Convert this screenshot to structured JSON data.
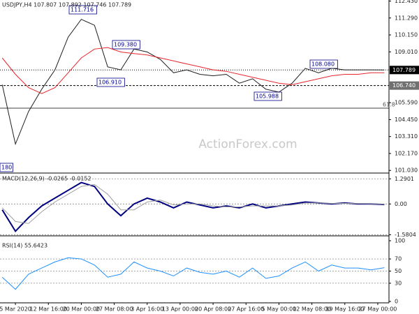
{
  "chart_data": [
    {
      "type": "line",
      "title": "USDJPY,H4 107.807 107.892 107.746 107.789",
      "x": [
        -4,
        0,
        4,
        8,
        12,
        16,
        20,
        24,
        28,
        32,
        36,
        40,
        44,
        48,
        52,
        56,
        60,
        64,
        68,
        72,
        76,
        80,
        84,
        88,
        92,
        96,
        100,
        104,
        108,
        112
      ],
      "series": [
        {
          "color": "#1e1e1e",
          "values": [
            106.8,
            102.8,
            105.0,
            106.5,
            107.8,
            110.0,
            111.2,
            110.8,
            108.0,
            107.8,
            109.2,
            109.0,
            108.5,
            107.6,
            107.8,
            107.5,
            107.4,
            107.5,
            106.9,
            107.2,
            106.5,
            106.3,
            106.9,
            107.9,
            107.6,
            107.9,
            107.8,
            107.8,
            107.8,
            107.789
          ]
        },
        {
          "color": "#e8262c",
          "values": [
            108.6,
            107.5,
            106.6,
            106.2,
            106.6,
            107.6,
            108.6,
            109.2,
            109.3,
            109.0,
            108.9,
            108.8,
            108.6,
            108.4,
            108.2,
            108.0,
            107.8,
            107.7,
            107.5,
            107.3,
            107.1,
            106.9,
            106.8,
            107.0,
            107.2,
            107.4,
            107.5,
            107.5,
            107.6,
            107.6
          ]
        }
      ],
      "xlim": [
        -4.68,
        113.4
      ],
      "ylim": [
        100.9,
        112.5
      ],
      "yticks": [
        {
          "value": 101.03,
          "label": "101.030"
        },
        {
          "value": 102.17,
          "label": "102.170"
        },
        {
          "value": 103.31,
          "label": "103.310"
        },
        {
          "value": 104.45,
          "label": "104.450"
        },
        {
          "value": 105.59,
          "label": "105.590"
        },
        {
          "value": 109.01,
          "label": "109.010"
        },
        {
          "value": 110.15,
          "label": "110.150"
        },
        {
          "value": 111.29,
          "label": "111.290"
        },
        {
          "value": 112.43,
          "label": "112.430"
        }
      ],
      "levels": [
        {
          "value": 107.789,
          "label": "107.789",
          "color": "#000000"
        },
        {
          "value": 106.74,
          "label": "106.740",
          "color": "#707070"
        }
      ],
      "annotations": [
        "111.716",
        "109.380",
        "106.910",
        "105.988",
        "108.080",
        "180",
        "61.8"
      ],
      "watermark": "ActionForex.com"
    },
    {
      "type": "line",
      "title": "MACD(12,26,9) -0.0265 -0.0152",
      "x": [
        -4,
        0,
        4,
        8,
        12,
        16,
        20,
        24,
        28,
        32,
        36,
        40,
        44,
        48,
        52,
        56,
        60,
        64,
        68,
        72,
        76,
        80,
        84,
        88,
        92,
        96,
        100,
        104,
        108,
        112
      ],
      "series": [
        {
          "color": "#000080",
          "width": 2,
          "values": [
            -0.3,
            -1.4,
            -0.7,
            -0.1,
            0.3,
            0.7,
            1.1,
            0.9,
            0.0,
            -0.6,
            0.0,
            0.3,
            0.1,
            -0.2,
            0.1,
            -0.05,
            -0.2,
            -0.1,
            -0.2,
            0.0,
            -0.2,
            -0.1,
            0.0,
            0.1,
            0.05,
            0.0,
            0.05,
            0.0,
            0.0,
            -0.03
          ]
        },
        {
          "color": "#a0a0a0",
          "width": 1,
          "values": [
            -0.2,
            -0.9,
            -1.0,
            -0.4,
            0.1,
            0.5,
            0.9,
            1.0,
            0.5,
            -0.3,
            -0.3,
            0.1,
            0.2,
            -0.05,
            0.0,
            0.0,
            -0.1,
            -0.15,
            -0.15,
            -0.1,
            -0.1,
            -0.1,
            -0.05,
            0.05,
            0.05,
            0.03,
            0.03,
            0.02,
            0.01,
            -0.02
          ]
        }
      ],
      "xlim": [
        -4.68,
        113.4
      ],
      "ylim": [
        -1.6,
        1.55
      ],
      "yticks": [
        {
          "value": -1.5804,
          "label": "-1.5804"
        },
        {
          "value": 0,
          "label": "0.00"
        },
        {
          "value": 1.2901,
          "label": "1.2901"
        }
      ]
    },
    {
      "type": "line",
      "title": "RSI(14) 55.6423",
      "x": [
        -4,
        0,
        4,
        8,
        12,
        16,
        20,
        24,
        28,
        32,
        36,
        40,
        44,
        48,
        52,
        56,
        60,
        64,
        68,
        72,
        76,
        80,
        84,
        88,
        92,
        96,
        100,
        104,
        108,
        112
      ],
      "series": [
        {
          "color": "#1e90ff",
          "width": 1,
          "values": [
            40,
            20,
            45,
            55,
            65,
            72,
            70,
            60,
            40,
            45,
            65,
            55,
            50,
            42,
            55,
            48,
            45,
            50,
            40,
            55,
            38,
            42,
            55,
            65,
            50,
            60,
            55,
            55,
            52,
            55.6423
          ]
        }
      ],
      "xlim": [
        -4.68,
        113.4
      ],
      "ylim": [
        0,
        100
      ],
      "yticks": [
        0,
        30,
        50,
        70,
        100
      ],
      "xticks": [
        {
          "value": 0,
          "label": "5 Mar 2020"
        },
        {
          "value": 10,
          "label": "12 Mar 16:00"
        },
        {
          "value": 20,
          "label": "20 Mar 00:00"
        },
        {
          "value": 30,
          "label": "27 Mar 08:00"
        },
        {
          "value": 40,
          "label": "3 Apr 16:00"
        },
        {
          "value": 50,
          "label": "13 Apr 00:00"
        },
        {
          "value": 60,
          "label": "20 Apr 08:00"
        },
        {
          "value": 70,
          "label": "27 Apr 16:00"
        },
        {
          "value": 80,
          "label": "5 May 00:00"
        },
        {
          "value": 90,
          "label": "12 May 08:00"
        },
        {
          "value": 100,
          "label": "19 May 16:00"
        },
        {
          "value": 110,
          "label": "27 May 00:00"
        }
      ]
    }
  ]
}
